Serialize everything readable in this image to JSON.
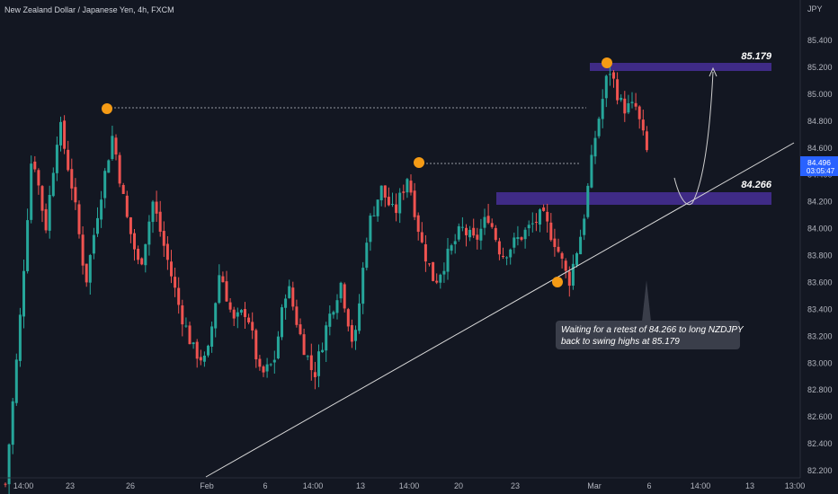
{
  "header": {
    "symbol_title": "New Zealand Dollar / Japanese Yen, 4h, FXCM",
    "currency": "JPY"
  },
  "colors": {
    "background": "#131722",
    "up": "#26a69a",
    "down": "#ef5350",
    "zone": "#3f2b86",
    "marker": "#f59b15",
    "trendline": "#d9d9d9",
    "axis_text": "#b2b5be",
    "price_tag": "#2962ff"
  },
  "price_axis": {
    "ticks": [
      "85.400",
      "85.200",
      "85.000",
      "84.800",
      "84.600",
      "84.400",
      "84.200",
      "84.000",
      "83.800",
      "83.600",
      "83.400",
      "83.200",
      "83.000",
      "82.800",
      "82.600",
      "82.400",
      "82.200"
    ]
  },
  "time_axis": {
    "ticks": [
      "14:00",
      "23",
      "26",
      "Feb",
      "6",
      "14:00",
      "13",
      "14:00",
      "20",
      "23",
      "Mar",
      "6",
      "14:00",
      "13",
      "13:00"
    ]
  },
  "current_price": {
    "value": "84.496",
    "countdown": "03:05:47"
  },
  "zones": [
    {
      "label": "85.179",
      "level": 85.179
    },
    {
      "label": "84.266",
      "level": 84.266
    }
  ],
  "annotation": {
    "line1": "Waiting for a retest of 84.266 to long NZDJPY",
    "line2": "back to swing highs at 85.179"
  },
  "chart_data": {
    "type": "candlestick",
    "symbol": "NZDJPY",
    "timeframe": "4h",
    "ylim": [
      82.15,
      85.48
    ],
    "current_price": 84.496,
    "swing_points": [
      {
        "x": "Jan 24",
        "price": 84.88
      },
      {
        "x": "Feb 15",
        "price": 84.48
      },
      {
        "x": "Feb 27",
        "price": 83.6
      },
      {
        "x": "Mar 1",
        "price": 85.23
      }
    ],
    "key_levels": [
      85.179,
      84.266
    ],
    "approx_path": [
      [
        82.1,
        83.2,
        84.6,
        84.0,
        84.8,
        84.3,
        83.6,
        84.2,
        84.7,
        84.1,
        83.7,
        84.2,
        83.8,
        83.4,
        83.1,
        83.0,
        83.7,
        83.3,
        83.4,
        82.9,
        83.0,
        83.6,
        83.2,
        82.9,
        83.3,
        83.6,
        83.1,
        84.0,
        84.3,
        84.1,
        84.4,
        83.9,
        83.6,
        83.8,
        84.0,
        83.9,
        84.1,
        83.8,
        83.9,
        84.0,
        84.1,
        83.9,
        83.6,
        84.0,
        84.7,
        85.2,
        84.9,
        84.9,
        84.5
      ]
    ]
  }
}
